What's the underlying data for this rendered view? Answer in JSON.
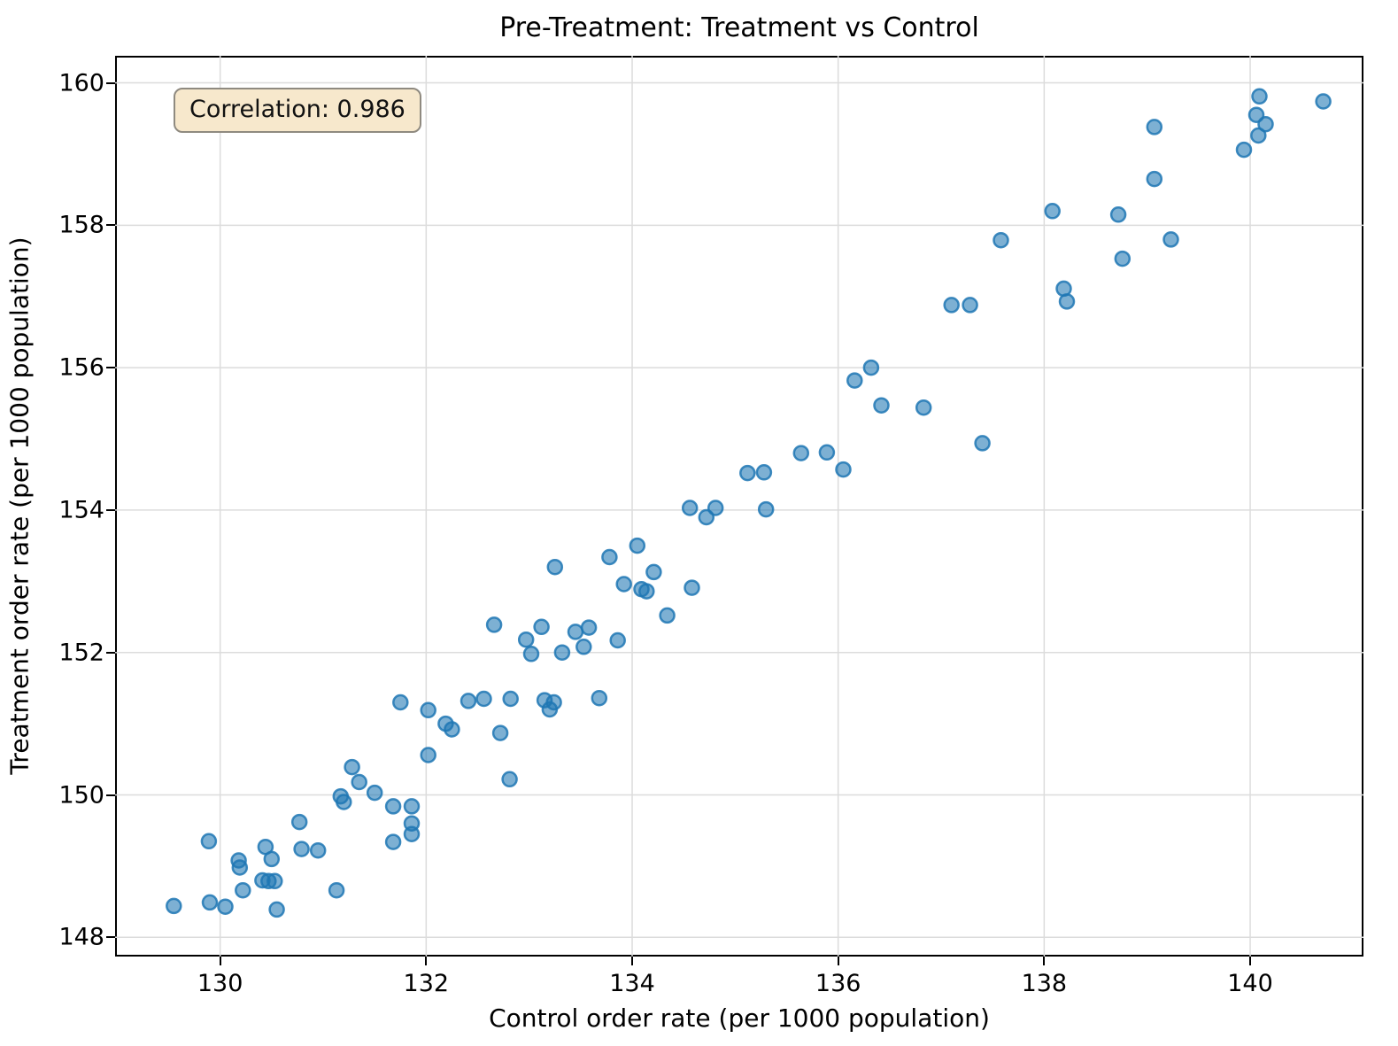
{
  "figure": {
    "title": "Pre-Treatment: Treatment vs Control",
    "annotation_label": "Correlation: 0.986"
  },
  "chart_data": {
    "type": "scatter",
    "title": "Pre-Treatment: Treatment vs Control",
    "xlabel": "Control order rate (per 1000 population)",
    "ylabel": "Treatment order rate (per 1000 population)",
    "xlim": [
      128.98,
      141.1
    ],
    "ylim": [
      147.73,
      160.38
    ],
    "xticks": [
      130,
      132,
      134,
      136,
      138,
      140
    ],
    "yticks": [
      148,
      150,
      152,
      154,
      156,
      158,
      160
    ],
    "grid": true,
    "grid_color": "#dcdcdc",
    "annotation": {
      "text": "Correlation: 0.986",
      "correlation": 0.986,
      "bg": "#f7e8cc"
    },
    "marker": {
      "color": "#1f77b4",
      "fill_opacity": 0.58,
      "edge_opacity": 0.85,
      "radius_px": 8,
      "edge_width": 2.5
    },
    "points": [
      [
        129.55,
        148.44
      ],
      [
        129.9,
        148.49
      ],
      [
        130.05,
        148.43
      ],
      [
        129.89,
        149.35
      ],
      [
        130.22,
        148.66
      ],
      [
        130.18,
        149.08
      ],
      [
        130.19,
        148.98
      ],
      [
        130.41,
        148.8
      ],
      [
        130.47,
        148.79
      ],
      [
        130.53,
        148.79
      ],
      [
        130.44,
        149.27
      ],
      [
        130.5,
        149.1
      ],
      [
        130.55,
        148.39
      ],
      [
        130.77,
        149.62
      ],
      [
        130.79,
        149.24
      ],
      [
        130.95,
        149.22
      ],
      [
        131.13,
        148.66
      ],
      [
        131.17,
        149.98
      ],
      [
        131.2,
        149.9
      ],
      [
        131.28,
        150.39
      ],
      [
        131.35,
        150.18
      ],
      [
        131.5,
        150.03
      ],
      [
        131.68,
        149.84
      ],
      [
        131.68,
        149.34
      ],
      [
        131.86,
        149.84
      ],
      [
        131.86,
        149.6
      ],
      [
        131.86,
        149.45
      ],
      [
        131.75,
        151.3
      ],
      [
        132.02,
        151.19
      ],
      [
        132.19,
        151.0
      ],
      [
        132.25,
        150.92
      ],
      [
        132.41,
        151.32
      ],
      [
        132.56,
        151.35
      ],
      [
        132.82,
        151.35
      ],
      [
        132.72,
        150.87
      ],
      [
        132.02,
        150.56
      ],
      [
        132.81,
        150.22
      ],
      [
        132.66,
        152.39
      ],
      [
        133.12,
        152.36
      ],
      [
        132.97,
        152.18
      ],
      [
        133.02,
        151.98
      ],
      [
        133.45,
        152.29
      ],
      [
        133.58,
        152.35
      ],
      [
        133.32,
        152.0
      ],
      [
        133.53,
        152.08
      ],
      [
        133.86,
        152.17
      ],
      [
        133.15,
        151.33
      ],
      [
        133.24,
        151.3
      ],
      [
        133.2,
        151.2
      ],
      [
        133.68,
        151.36
      ],
      [
        133.25,
        153.2
      ],
      [
        133.78,
        153.34
      ],
      [
        134.05,
        153.5
      ],
      [
        134.21,
        153.13
      ],
      [
        133.92,
        152.96
      ],
      [
        134.09,
        152.89
      ],
      [
        134.14,
        152.86
      ],
      [
        134.58,
        152.91
      ],
      [
        134.34,
        152.52
      ],
      [
        134.56,
        154.03
      ],
      [
        134.72,
        153.9
      ],
      [
        134.81,
        154.03
      ],
      [
        135.3,
        154.01
      ],
      [
        135.12,
        154.52
      ],
      [
        135.28,
        154.53
      ],
      [
        135.64,
        154.8
      ],
      [
        135.89,
        154.81
      ],
      [
        136.05,
        154.57
      ],
      [
        136.16,
        155.82
      ],
      [
        136.32,
        156.0
      ],
      [
        136.42,
        155.47
      ],
      [
        136.83,
        155.44
      ],
      [
        137.4,
        154.94
      ],
      [
        137.1,
        156.88
      ],
      [
        137.28,
        156.88
      ],
      [
        137.58,
        157.79
      ],
      [
        138.08,
        158.2
      ],
      [
        138.19,
        157.11
      ],
      [
        138.22,
        156.93
      ],
      [
        138.72,
        158.15
      ],
      [
        138.76,
        157.53
      ],
      [
        139.07,
        159.38
      ],
      [
        139.07,
        158.65
      ],
      [
        139.23,
        157.8
      ],
      [
        139.94,
        159.06
      ],
      [
        140.06,
        159.55
      ],
      [
        140.08,
        159.26
      ],
      [
        140.09,
        159.81
      ],
      [
        140.15,
        159.42
      ],
      [
        140.71,
        159.74
      ]
    ]
  }
}
